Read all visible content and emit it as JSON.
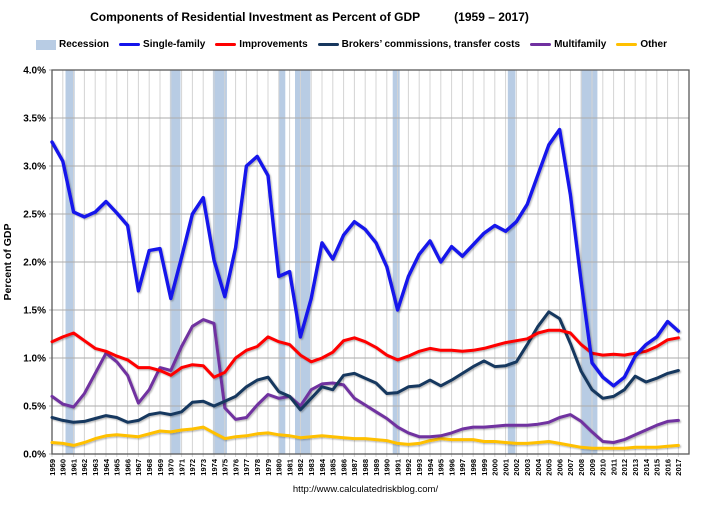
{
  "title": {
    "main": "Components of Residential Investment as Percent of GDP",
    "range": "(1959 – 2017)"
  },
  "source_url": "http://www.calculatedriskblog.com/",
  "legend": {
    "items": [
      {
        "label": "Recession",
        "type": "band",
        "color": "#b8cce4"
      },
      {
        "label": "Single-family",
        "type": "line",
        "color": "#1414eb"
      },
      {
        "label": "Improvements",
        "type": "line",
        "color": "#fe0000"
      },
      {
        "label": "Brokers’ commissions, transfer costs",
        "type": "line",
        "color": "#17375e"
      },
      {
        "label": "Multifamily",
        "type": "line",
        "color": "#7030a0"
      },
      {
        "label": "Other",
        "type": "line",
        "color": "#ffc000"
      }
    ]
  },
  "chart_data": {
    "type": "line",
    "title": "Components of Residential Investment as Percent of GDP (1959 – 2017)",
    "xlabel": "",
    "ylabel": "Percent of GDP",
    "ylim": [
      0,
      4
    ],
    "ytick_step": 0.5,
    "ytick_labels": [
      "0.0%",
      "0.5%",
      "1.0%",
      "1.5%",
      "2.0%",
      "2.5%",
      "3.0%",
      "3.5%",
      "4.0%"
    ],
    "grid": true,
    "legend_position": "top",
    "recession_color": "#b8cce4",
    "recession_bands": [
      {
        "start": 1960.25,
        "end": 1961.1
      },
      {
        "start": 1969.92,
        "end": 1970.9
      },
      {
        "start": 1973.9,
        "end": 1975.2
      },
      {
        "start": 1980.0,
        "end": 1980.6
      },
      {
        "start": 1981.5,
        "end": 1982.92
      },
      {
        "start": 1990.55,
        "end": 1991.2
      },
      {
        "start": 2001.2,
        "end": 2001.9
      },
      {
        "start": 2007.95,
        "end": 2009.5
      }
    ],
    "x": [
      1959,
      1960,
      1961,
      1962,
      1963,
      1964,
      1965,
      1966,
      1967,
      1968,
      1969,
      1970,
      1971,
      1972,
      1973,
      1974,
      1975,
      1976,
      1977,
      1978,
      1979,
      1980,
      1981,
      1982,
      1983,
      1984,
      1985,
      1986,
      1987,
      1988,
      1989,
      1990,
      1991,
      1992,
      1993,
      1994,
      1995,
      1996,
      1997,
      1998,
      1999,
      2000,
      2001,
      2002,
      2003,
      2004,
      2005,
      2006,
      2007,
      2008,
      2009,
      2010,
      2011,
      2012,
      2013,
      2014,
      2015,
      2016,
      2017
    ],
    "series": [
      {
        "id": "single-family",
        "name": "Single-family",
        "color": "#1414eb",
        "width": 3.4,
        "values": [
          3.25,
          3.05,
          2.52,
          2.47,
          2.52,
          2.63,
          2.51,
          2.38,
          1.7,
          2.12,
          2.14,
          1.62,
          2.05,
          2.5,
          2.67,
          2.02,
          1.64,
          2.15,
          3.0,
          3.1,
          2.9,
          1.85,
          1.9,
          1.22,
          1.62,
          2.2,
          2.03,
          2.28,
          2.42,
          2.34,
          2.2,
          1.95,
          1.5,
          1.85,
          2.08,
          2.22,
          2.0,
          2.16,
          2.06,
          2.18,
          2.3,
          2.38,
          2.32,
          2.42,
          2.6,
          2.91,
          3.22,
          3.38,
          2.7,
          1.79,
          0.95,
          0.8,
          0.71,
          0.8,
          1.02,
          1.14,
          1.22,
          1.38,
          1.28
        ]
      },
      {
        "id": "improvements",
        "name": "Improvements",
        "color": "#fe0000",
        "width": 3,
        "values": [
          1.17,
          1.22,
          1.26,
          1.18,
          1.1,
          1.07,
          1.02,
          0.98,
          0.9,
          0.9,
          0.87,
          0.82,
          0.9,
          0.93,
          0.92,
          0.8,
          0.85,
          1.0,
          1.08,
          1.12,
          1.22,
          1.17,
          1.14,
          1.03,
          0.96,
          1.0,
          1.06,
          1.18,
          1.21,
          1.17,
          1.11,
          1.03,
          0.98,
          1.02,
          1.07,
          1.1,
          1.08,
          1.08,
          1.07,
          1.08,
          1.1,
          1.13,
          1.16,
          1.18,
          1.2,
          1.26,
          1.29,
          1.29,
          1.26,
          1.14,
          1.05,
          1.03,
          1.04,
          1.03,
          1.05,
          1.07,
          1.12,
          1.19,
          1.21
        ]
      },
      {
        "id": "brokers-commissions",
        "name": "Brokers’ commissions, transfer costs",
        "color": "#17375e",
        "width": 3,
        "values": [
          0.38,
          0.35,
          0.33,
          0.34,
          0.37,
          0.4,
          0.38,
          0.33,
          0.35,
          0.41,
          0.43,
          0.41,
          0.44,
          0.54,
          0.55,
          0.5,
          0.55,
          0.6,
          0.7,
          0.77,
          0.8,
          0.65,
          0.6,
          0.46,
          0.58,
          0.7,
          0.67,
          0.82,
          0.84,
          0.79,
          0.74,
          0.63,
          0.64,
          0.7,
          0.71,
          0.77,
          0.71,
          0.77,
          0.84,
          0.91,
          0.97,
          0.91,
          0.92,
          0.96,
          1.14,
          1.33,
          1.48,
          1.41,
          1.15,
          0.86,
          0.67,
          0.58,
          0.6,
          0.67,
          0.81,
          0.75,
          0.79,
          0.84,
          0.87
        ]
      },
      {
        "id": "multifamily",
        "name": "Multifamily",
        "color": "#7030a0",
        "width": 3,
        "values": [
          0.6,
          0.52,
          0.49,
          0.63,
          0.84,
          1.05,
          0.96,
          0.82,
          0.53,
          0.67,
          0.9,
          0.87,
          1.12,
          1.33,
          1.4,
          1.36,
          0.48,
          0.36,
          0.38,
          0.51,
          0.62,
          0.58,
          0.6,
          0.5,
          0.67,
          0.73,
          0.74,
          0.72,
          0.58,
          0.51,
          0.44,
          0.37,
          0.28,
          0.22,
          0.18,
          0.18,
          0.19,
          0.22,
          0.26,
          0.28,
          0.28,
          0.29,
          0.3,
          0.3,
          0.3,
          0.31,
          0.33,
          0.38,
          0.41,
          0.34,
          0.23,
          0.13,
          0.12,
          0.15,
          0.2,
          0.25,
          0.3,
          0.34,
          0.35
        ]
      },
      {
        "id": "other",
        "name": "Other",
        "color": "#ffc000",
        "width": 3,
        "values": [
          0.12,
          0.11,
          0.09,
          0.12,
          0.16,
          0.19,
          0.2,
          0.19,
          0.18,
          0.21,
          0.24,
          0.23,
          0.25,
          0.26,
          0.28,
          0.22,
          0.16,
          0.18,
          0.19,
          0.21,
          0.22,
          0.2,
          0.19,
          0.17,
          0.18,
          0.19,
          0.18,
          0.17,
          0.16,
          0.16,
          0.15,
          0.14,
          0.11,
          0.1,
          0.11,
          0.14,
          0.16,
          0.15,
          0.15,
          0.15,
          0.13,
          0.13,
          0.12,
          0.11,
          0.11,
          0.12,
          0.13,
          0.11,
          0.09,
          0.07,
          0.06,
          0.06,
          0.06,
          0.06,
          0.07,
          0.07,
          0.07,
          0.08,
          0.09
        ]
      }
    ]
  }
}
